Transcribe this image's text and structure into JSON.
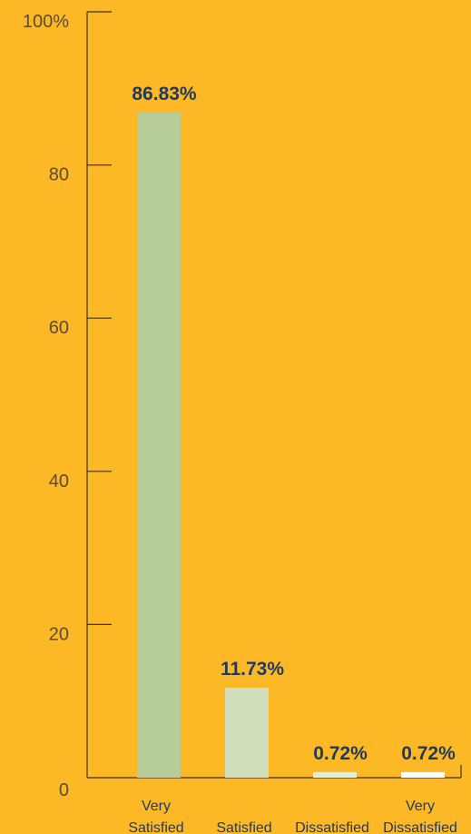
{
  "chart_data": {
    "type": "bar",
    "categories": [
      [
        "Very",
        "Satisfied"
      ],
      [
        "Satisfied"
      ],
      [
        "Dissatisfied"
      ],
      [
        "Very",
        "Dissatisfied"
      ]
    ],
    "values": [
      86.83,
      11.73,
      0.72,
      0.72
    ],
    "data_labels": [
      "86.83%",
      "11.73%",
      "0.72%",
      "0.72%"
    ],
    "bar_colors": [
      "#B5CB98",
      "#D2DFBC",
      "#E5EDD3",
      "#FFFFFF"
    ],
    "y_ticks": [
      0,
      20,
      40,
      60,
      80,
      100
    ],
    "y_tick_labels": [
      "0",
      "20",
      "40",
      "60",
      "80",
      "100%"
    ],
    "ylim": [
      0,
      100
    ],
    "grid": false,
    "background": "#FDB826",
    "title": "",
    "xlabel": "",
    "ylabel": ""
  }
}
